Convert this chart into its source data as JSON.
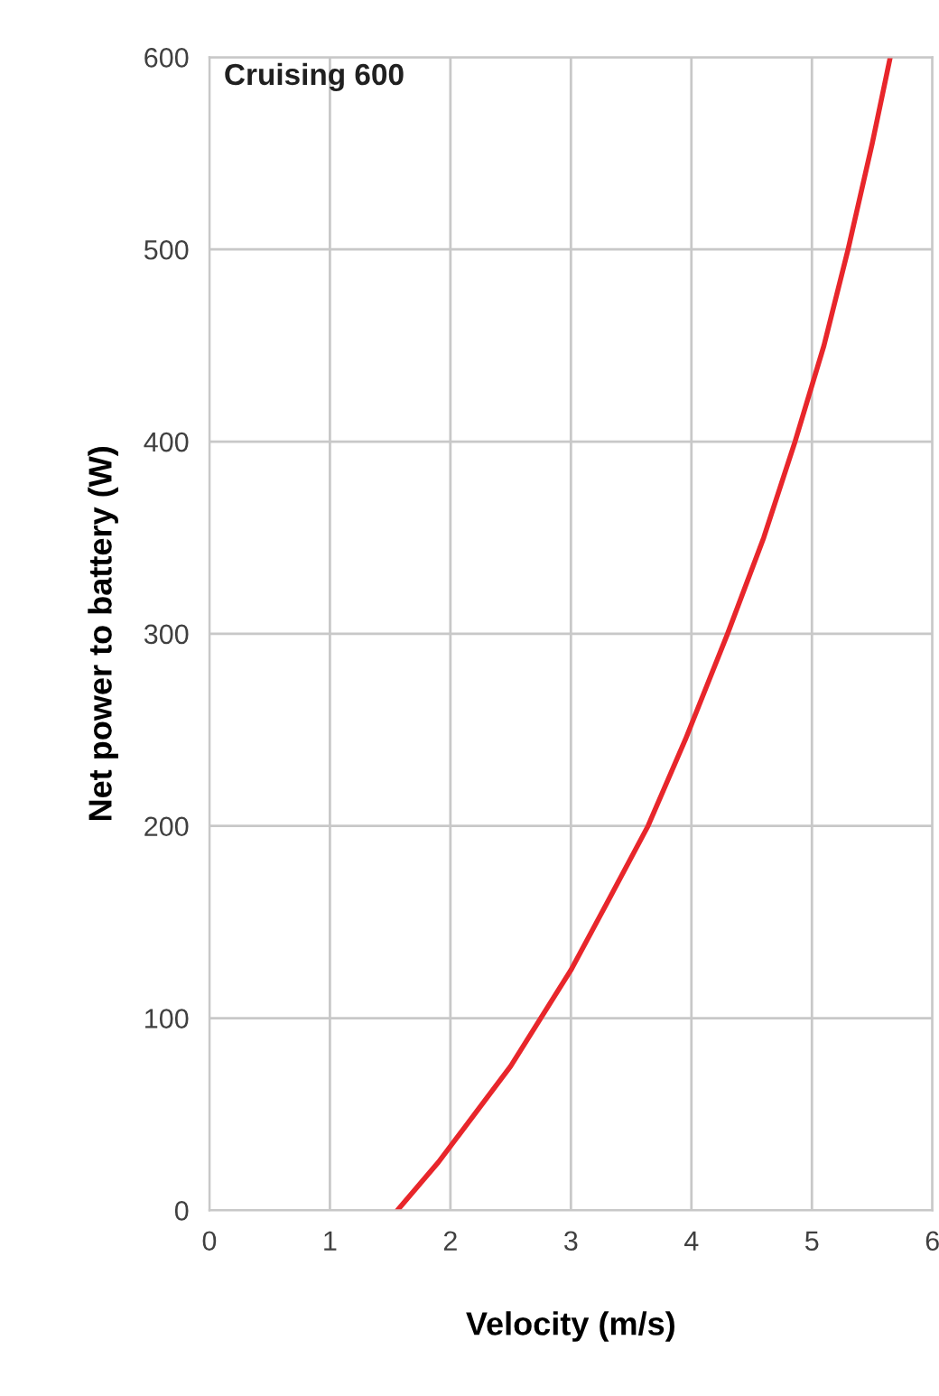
{
  "chart_data": {
    "type": "line",
    "title": "Cruising 600",
    "xlabel": "Velocity (m/s)",
    "ylabel": "Net power to battery (W)",
    "series": [
      {
        "color": "#e8262b",
        "x": [
          1.56,
          1.9,
          2.2,
          2.5,
          2.75,
          3.0,
          3.3,
          3.64,
          3.95,
          4.3,
          4.6,
          4.86,
          5.1,
          5.3,
          5.5,
          5.65
        ],
        "values": [
          0,
          25,
          50,
          75,
          100,
          125,
          160,
          200,
          245,
          300,
          350,
          400,
          450,
          500,
          555,
          600
        ]
      }
    ],
    "xlim": [
      0,
      6
    ],
    "ylim": [
      0,
      600
    ],
    "xticks": [
      0,
      1,
      2,
      3,
      4,
      5,
      6
    ],
    "yticks": [
      0,
      100,
      200,
      300,
      400,
      500,
      600
    ],
    "grid": true,
    "marker": "none",
    "line_style": "solid"
  }
}
